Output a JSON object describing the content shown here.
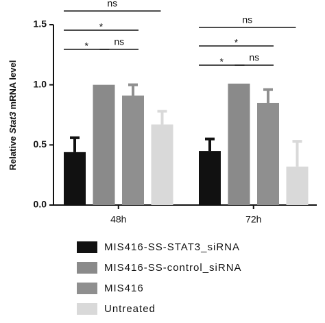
{
  "chart_data": {
    "type": "bar",
    "y_label": [
      "Relative ",
      "Stat3",
      " mRNA level"
    ],
    "categories": [
      "48h",
      "72h"
    ],
    "series": [
      {
        "name": "MIS416-SS-STAT3_siRNA",
        "color": "#111111",
        "values": [
          0.44,
          0.45
        ],
        "errors": [
          0.12,
          0.1
        ]
      },
      {
        "name": "MIS416-SS-control_siRNA",
        "color": "#8a8a8a",
        "values": [
          1.0,
          1.01
        ],
        "errors": [
          0,
          0
        ]
      },
      {
        "name": "MIS416",
        "color": "#8f8f8f",
        "values": [
          0.91,
          0.85
        ],
        "errors": [
          0.09,
          0.11
        ]
      },
      {
        "name": "Untreated",
        "color": "#d9d9d9",
        "values": [
          0.67,
          0.32
        ],
        "errors": [
          0.11,
          0.21
        ]
      }
    ],
    "ylim": [
      0,
      1.5
    ],
    "yticks": [
      {
        "value": 0,
        "label": "0.0"
      },
      {
        "value": 0.5,
        "label": "0.5"
      },
      {
        "value": 1,
        "label": "1.0"
      },
      {
        "value": 1.5,
        "label": "1.5"
      }
    ],
    "comparisons": [
      {
        "category": 0,
        "from": 0,
        "to": 3,
        "label": "ns"
      },
      {
        "category": 0,
        "from": 0,
        "to": 2,
        "label": "*"
      },
      {
        "category": 0,
        "from": 0,
        "to": 1,
        "label": "*"
      },
      {
        "category": 0,
        "from": 1,
        "to": 2,
        "label": "ns"
      },
      {
        "category": 1,
        "from": 0,
        "to": 3,
        "label": "ns"
      },
      {
        "category": 1,
        "from": 0,
        "to": 2,
        "label": "*"
      },
      {
        "category": 1,
        "from": 0,
        "to": 1,
        "label": "*"
      },
      {
        "category": 1,
        "from": 1,
        "to": 2,
        "label": "ns"
      }
    ]
  }
}
